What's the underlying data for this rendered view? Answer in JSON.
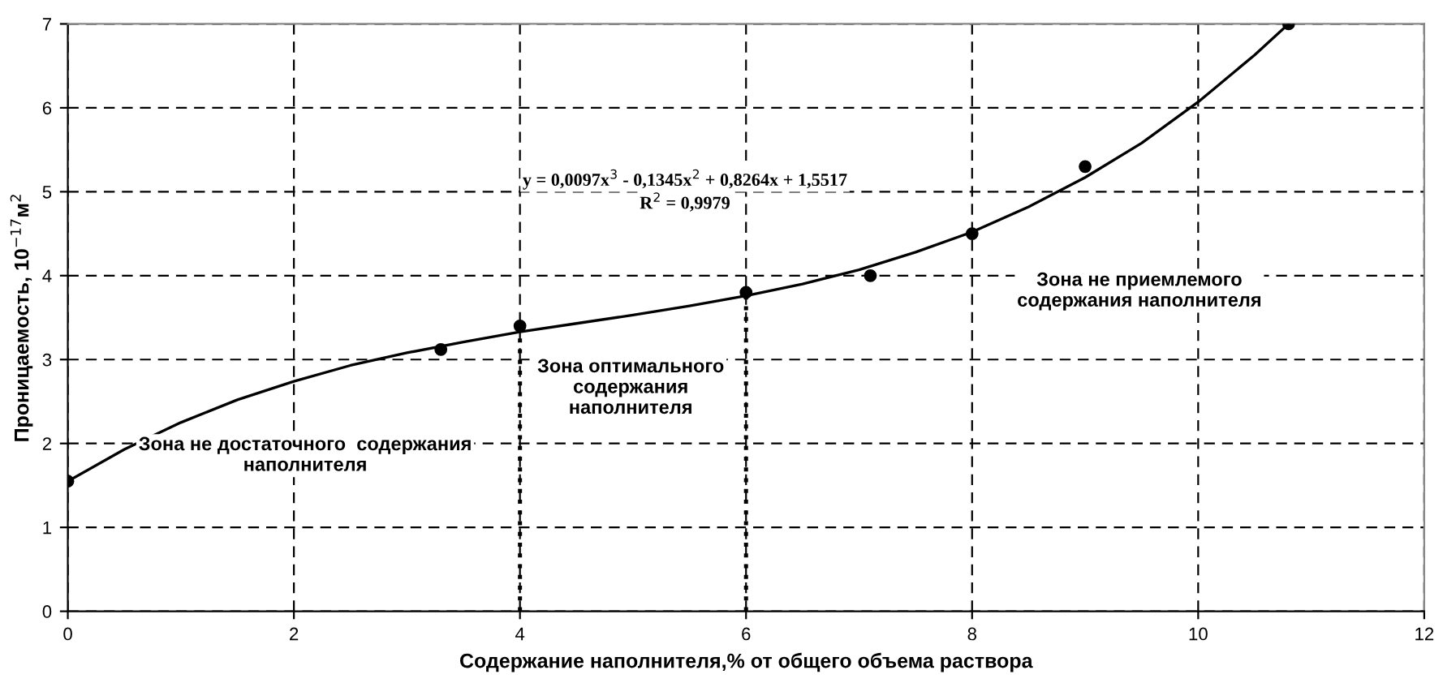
{
  "chart_data": {
    "type": "scatter",
    "xlabel": "Содержание наполнителя,% от общего объема раствора",
    "ylabel": "Проницаемость, 10$^{−17}$м$^{2}$",
    "xlim": [
      0,
      12
    ],
    "xticks": [
      0,
      2,
      4,
      6,
      8,
      10,
      12
    ],
    "ylim": [
      0,
      7
    ],
    "yticks": [
      0,
      1,
      2,
      3,
      4,
      5,
      6,
      7
    ],
    "grid": true,
    "legend": false,
    "series": [
      {
        "color": "#000000",
        "marker": "circle",
        "x": [
          0,
          3.3,
          4,
          6,
          7.1,
          8,
          9,
          10.8
        ],
        "values": [
          1.55,
          3.12,
          3.4,
          3.8,
          4.0,
          4.5,
          5.3,
          7.0
        ]
      },
      {
        "type": "line",
        "color": "#000000",
        "marker": "none",
        "line_style": "solid",
        "x": [
          0,
          0.5,
          1,
          1.5,
          2,
          2.5,
          3,
          3.5,
          4,
          4.5,
          5,
          5.5,
          6,
          6.5,
          7,
          7.5,
          8,
          8.5,
          9,
          9.5,
          10,
          10.5,
          10.8
        ],
        "values": [
          1.55,
          1.93,
          2.25,
          2.52,
          2.74,
          2.93,
          3.08,
          3.21,
          3.33,
          3.43,
          3.53,
          3.64,
          3.76,
          3.9,
          4.07,
          4.28,
          4.52,
          4.82,
          5.17,
          5.58,
          6.07,
          6.63,
          7.0
        ]
      }
    ],
    "ref_lines": [
      {
        "axis": "x",
        "value": 4,
        "color": "#000000",
        "line_style": "dotted"
      },
      {
        "axis": "x",
        "value": 6,
        "color": "#000000",
        "line_style": "dotted"
      }
    ],
    "annotations": [
      "y = 0,0097x$^{3}$ - 0,1345x$^{2}$ + 0,8264x + 1,5517",
      "R$^{2}$ = 0,9979",
      "Зона не достаточного  содержания\nнаполнителя",
      "Зона оптимального\nсодержания\nнаполнителя",
      "Зона не приемлемого\nсодержания наполнителя"
    ]
  }
}
